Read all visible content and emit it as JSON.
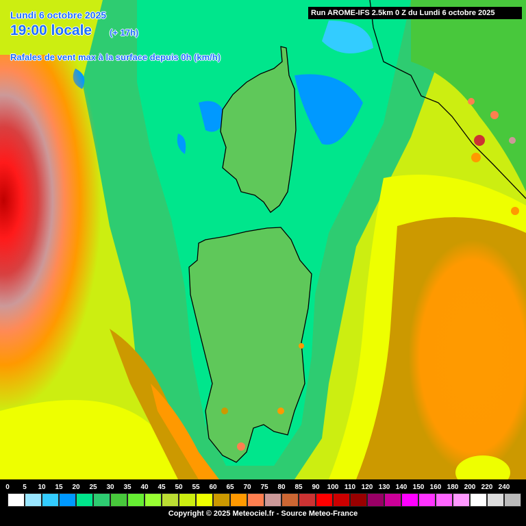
{
  "header": {
    "date": "Lundi 6 octobre 2025",
    "time": "19:00 locale",
    "lead": "(+ 17h)",
    "parameter": "Rafales de vent max à la surface depuis 0h (km/h)"
  },
  "run_banner": "Run AROME-IFS 2.5km 0 Z du Lundi 6 octobre 2025",
  "map": {
    "region": "Corse / Sardaigne",
    "palette": {
      "wind_high": "#e03030",
      "wind_mid": "#ff9900",
      "wind_low": "#00e68c",
      "land_base": "#5fc85a",
      "coast": "#000000"
    }
  },
  "scale": {
    "labels": [
      "0",
      "5",
      "10",
      "15",
      "20",
      "25",
      "30",
      "35",
      "40",
      "45",
      "50",
      "55",
      "60",
      "65",
      "70",
      "75",
      "80",
      "85",
      "90",
      "100",
      "110",
      "120",
      "130",
      "140",
      "150",
      "160",
      "180",
      "200",
      "220",
      "240"
    ],
    "colors": [
      "#ffffff",
      "#99e6ff",
      "#33ccff",
      "#0099ff",
      "#00e68c",
      "#2ecc71",
      "#48c83c",
      "#66ee33",
      "#99ff33",
      "#bbdd33",
      "#ccee11",
      "#eeff00",
      "#cc9900",
      "#ff9900",
      "#ff7f50",
      "#cc9999",
      "#cc6633",
      "#cc3333",
      "#ff0000",
      "#cc0000",
      "#990000",
      "#990066",
      "#cc0099",
      "#ff00ff",
      "#ff33ff",
      "#ff66ff",
      "#ff99ff",
      "#ffffff",
      "#dddddd",
      "#bbbbbb"
    ]
  },
  "copyright": "Copyright © 2025 Meteociel.fr - Source Meteo-France"
}
